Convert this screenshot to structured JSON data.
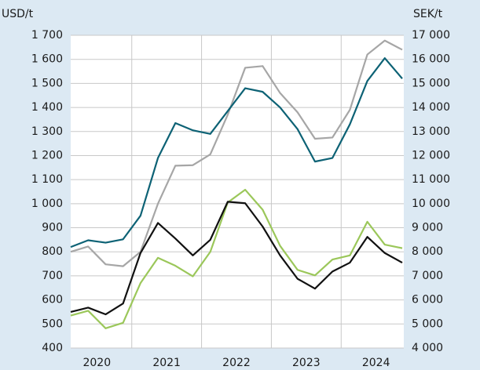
{
  "chart_data": {
    "type": "line",
    "ylabel": "USD/t",
    "y2label": "SEK/t",
    "x": [
      2020,
      2020.25,
      2020.5,
      2020.75,
      2021,
      2021.25,
      2021.5,
      2021.75,
      2022,
      2022.25,
      2022.5,
      2022.75,
      2023,
      2023.25,
      2023.5,
      2023.75,
      2024,
      2024.25,
      2024.5,
      2024.75
    ],
    "xlim": [
      2020,
      2024.75
    ],
    "xticks": [
      {
        "value": 2020.375,
        "label": "2020"
      },
      {
        "value": 2021.375,
        "label": "2021"
      },
      {
        "value": 2022.375,
        "label": "2022"
      },
      {
        "value": 2023.375,
        "label": "2023"
      },
      {
        "value": 2024.375,
        "label": "2024"
      }
    ],
    "xgrid": [
      2020.875,
      2021.875,
      2022.875,
      2023.875
    ],
    "ylim": [
      400,
      1700
    ],
    "yticks": [
      {
        "value": 400,
        "label": "400"
      },
      {
        "value": 500,
        "label": "500"
      },
      {
        "value": 600,
        "label": "600"
      },
      {
        "value": 700,
        "label": "700"
      },
      {
        "value": 800,
        "label": "800"
      },
      {
        "value": 900,
        "label": "900"
      },
      {
        "value": 1000,
        "label": "1 000"
      },
      {
        "value": 1100,
        "label": "1 100"
      },
      {
        "value": 1200,
        "label": "1 200"
      },
      {
        "value": 1300,
        "label": "1 300"
      },
      {
        "value": 1400,
        "label": "1 400"
      },
      {
        "value": 1500,
        "label": "1 500"
      },
      {
        "value": 1600,
        "label": "1 600"
      },
      {
        "value": 1700,
        "label": "1 700"
      }
    ],
    "y2lim": [
      4000,
      17000
    ],
    "y2ticks": [
      {
        "value": 4000,
        "label": "4 000"
      },
      {
        "value": 5000,
        "label": "5 000"
      },
      {
        "value": 6000,
        "label": "6 000"
      },
      {
        "value": 7000,
        "label": "7 000"
      },
      {
        "value": 8000,
        "label": "8 000"
      },
      {
        "value": 9000,
        "label": "9 000"
      },
      {
        "value": 10000,
        "label": "10 000"
      },
      {
        "value": 11000,
        "label": "11 000"
      },
      {
        "value": 12000,
        "label": "12 000"
      },
      {
        "value": 13000,
        "label": "13 000"
      },
      {
        "value": 14000,
        "label": "14 000"
      },
      {
        "value": 15000,
        "label": "15 000"
      },
      {
        "value": 16000,
        "label": "16 000"
      },
      {
        "value": 17000,
        "label": "17 000"
      }
    ],
    "grid": true,
    "series": [
      {
        "color": "#a6a6a6",
        "values": [
          800,
          822,
          748,
          740,
          800,
          1000,
          1158,
          1160,
          1205,
          1370,
          1565,
          1572,
          1460,
          1380,
          1270,
          1275,
          1390,
          1620,
          1678,
          1640
        ]
      },
      {
        "color": "#0d6275",
        "values": [
          820,
          848,
          838,
          852,
          950,
          1190,
          1335,
          1305,
          1290,
          1385,
          1480,
          1465,
          1400,
          1310,
          1175,
          1190,
          1330,
          1510,
          1605,
          1520
        ]
      },
      {
        "color": "#9bc75a",
        "values": [
          535,
          555,
          482,
          505,
          670,
          775,
          742,
          698,
          800,
          1005,
          1058,
          975,
          825,
          725,
          702,
          768,
          785,
          925,
          830,
          815
        ]
      },
      {
        "color": "#111111",
        "values": [
          550,
          568,
          540,
          585,
          795,
          920,
          855,
          785,
          850,
          1008,
          1002,
          905,
          785,
          688,
          647,
          718,
          755,
          862,
          795,
          755
        ]
      }
    ]
  }
}
